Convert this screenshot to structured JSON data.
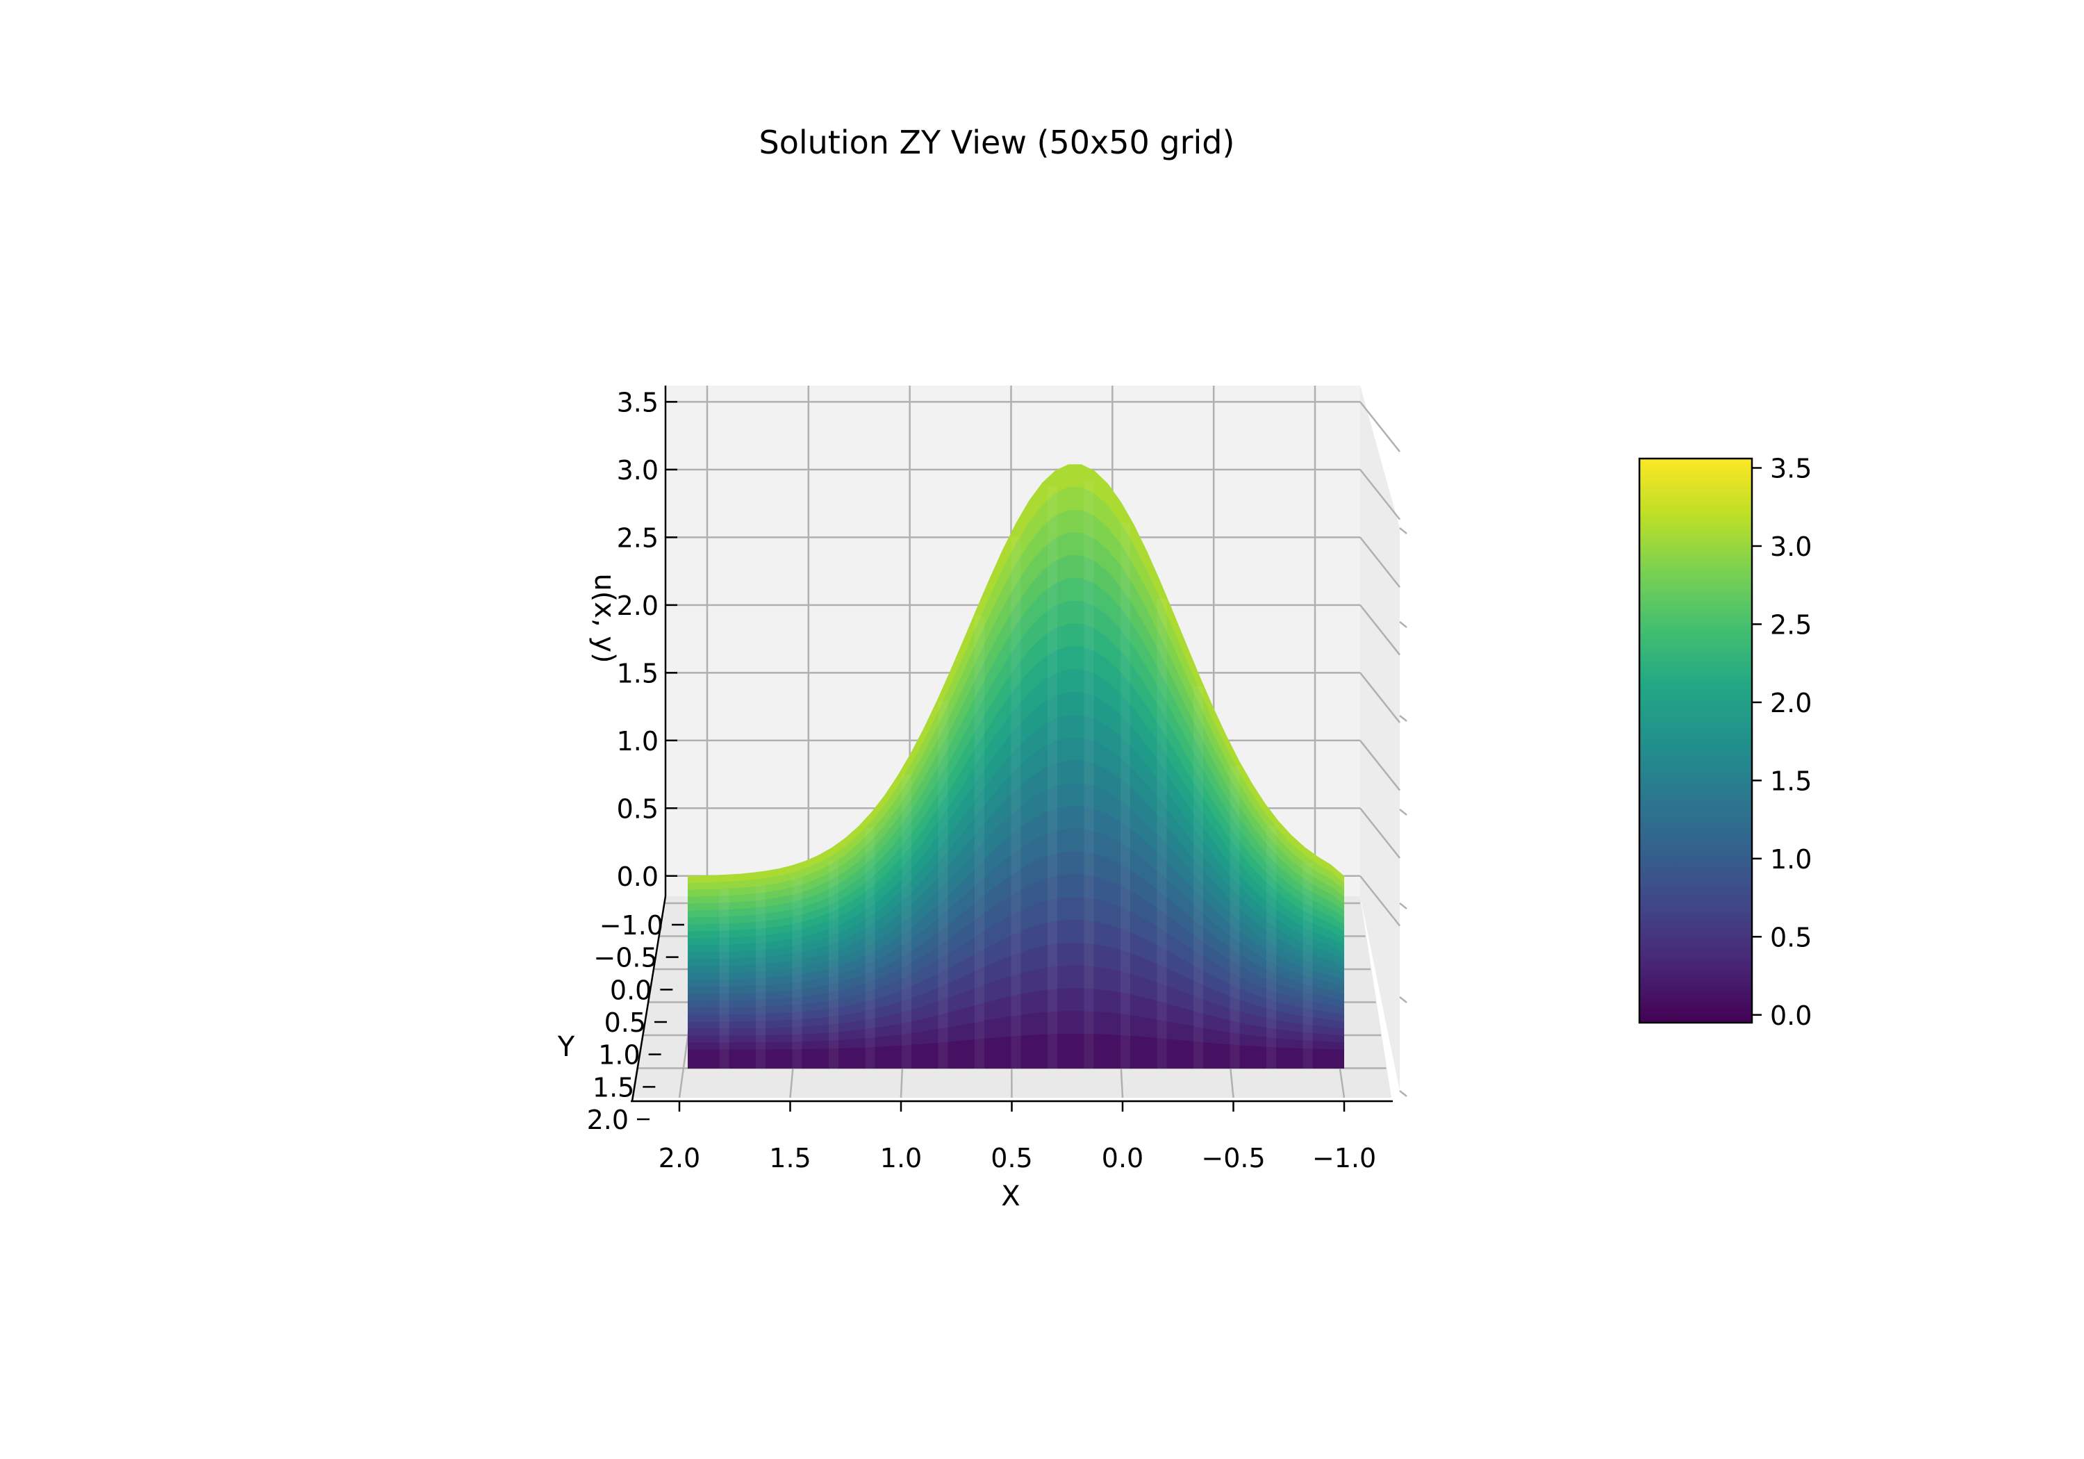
{
  "chart_data": {
    "type": "surface-3d",
    "title": "Solution ZY View (50x50 grid)",
    "xlabel": "X",
    "ylabel": "Y",
    "zlabel": "u(x, y)",
    "x_ticks": [
      "2.0",
      "1.5",
      "1.0",
      "0.5",
      "0.0",
      "−0.5",
      "−1.0"
    ],
    "y_ticks": [
      "−1.0",
      "−0.5",
      "0.0",
      "0.5",
      "1.0",
      "1.5",
      "2.0"
    ],
    "z_ticks": [
      "0.0",
      "0.5",
      "1.0",
      "1.5",
      "2.0",
      "2.5",
      "3.0",
      "3.5"
    ],
    "xlim": [
      -1.2,
      2.2
    ],
    "ylim": [
      -1.2,
      2.0
    ],
    "zlim": [
      -0.15,
      3.62
    ],
    "grid": true,
    "colormap": "viridis",
    "colorbar": {
      "range": [
        -0.05,
        3.56
      ],
      "ticks": [
        "0.0",
        "0.5",
        "1.0",
        "1.5",
        "2.0",
        "2.5",
        "3.0",
        "3.5"
      ]
    },
    "surface": {
      "grid_size": [
        50,
        50
      ],
      "peak": {
        "x": 0.2,
        "z": 3.1
      },
      "base_z": 0.0,
      "x_extent": [
        -1.0,
        2.0
      ]
    }
  },
  "colors": {
    "pane": "#f2f2f2",
    "grid": "#b0b0b0",
    "axis": "#000000"
  }
}
